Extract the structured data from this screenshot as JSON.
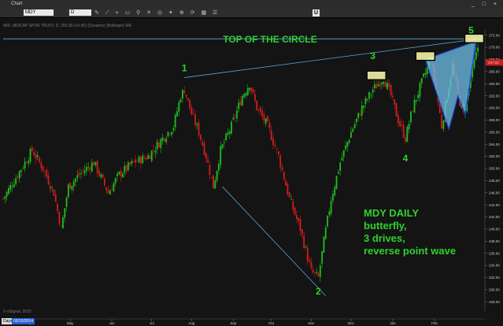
{
  "window": {
    "title": "Chart",
    "symbol_value": "MDY",
    "period_value": "D",
    "u_button": "U",
    "controls": "_ □ ×"
  },
  "chart_header": "MID, MIDCAP SPDR TRUST, D, 265.00 (+0.00) (Dynamic) (Bollinger) MA",
  "watermark_footer": "© eSignal, 2015",
  "axis_controls": {
    "days_label": "Days",
    "date_value": "03/10/2014"
  },
  "annotations": {
    "title": "TOP OF THE CIRCLE",
    "wave_labels": [
      "1",
      "2",
      "3",
      "4",
      "5"
    ],
    "note_lines": [
      "MDY DAILY",
      "butterfly,",
      "3 drives,",
      "reverse point wave"
    ]
  },
  "colors": {
    "background": "#141414",
    "up_candle": "#1fbf1f",
    "down_candle": "#d11d1d",
    "annotation": "#2fd12f",
    "trendline": "#5aa6dc",
    "pattern_fill": "#6fbfe8",
    "pattern_stroke": "#1e4fd8",
    "box_fill": "#f3f1a6",
    "price_marker": "#d11d1d"
  },
  "chart_data": {
    "type": "candlestick",
    "x_tick_labels": [
      "Apr",
      "May",
      "Jun",
      "Jul",
      "Aug",
      "Sep",
      "Oct",
      "Nov",
      "Dec",
      "Jan",
      "Feb"
    ],
    "y_ticks": [
      228,
      230,
      232,
      234,
      236,
      238,
      240,
      242,
      244,
      246,
      248,
      250,
      252,
      254,
      256,
      258,
      260,
      262,
      264,
      266,
      268,
      270,
      272
    ],
    "ylim": [
      227,
      273
    ],
    "last_price_label": "267.50",
    "grid": false,
    "path_points": [
      {
        "x": 0,
        "y": 245
      },
      {
        "x": 8,
        "y": 249
      },
      {
        "x": 16,
        "y": 253
      },
      {
        "x": 22,
        "y": 250
      },
      {
        "x": 28,
        "y": 246
      },
      {
        "x": 32,
        "y": 240
      },
      {
        "x": 36,
        "y": 247
      },
      {
        "x": 42,
        "y": 249
      },
      {
        "x": 50,
        "y": 251
      },
      {
        "x": 58,
        "y": 246
      },
      {
        "x": 64,
        "y": 249
      },
      {
        "x": 72,
        "y": 251
      },
      {
        "x": 80,
        "y": 252
      },
      {
        "x": 88,
        "y": 255
      },
      {
        "x": 94,
        "y": 257
      },
      {
        "x": 98,
        "y": 262
      },
      {
        "x": 100,
        "y": 263
      },
      {
        "x": 104,
        "y": 259
      },
      {
        "x": 108,
        "y": 256
      },
      {
        "x": 112,
        "y": 252
      },
      {
        "x": 116,
        "y": 247
      },
      {
        "x": 120,
        "y": 253
      },
      {
        "x": 126,
        "y": 257
      },
      {
        "x": 132,
        "y": 262
      },
      {
        "x": 136,
        "y": 264
      },
      {
        "x": 140,
        "y": 260
      },
      {
        "x": 146,
        "y": 257
      },
      {
        "x": 152,
        "y": 252
      },
      {
        "x": 158,
        "y": 245
      },
      {
        "x": 164,
        "y": 240
      },
      {
        "x": 170,
        "y": 233
      },
      {
        "x": 174,
        "y": 232
      },
      {
        "x": 177,
        "y": 238
      },
      {
        "x": 181,
        "y": 245
      },
      {
        "x": 186,
        "y": 251
      },
      {
        "x": 192,
        "y": 256
      },
      {
        "x": 198,
        "y": 260
      },
      {
        "x": 204,
        "y": 263
      },
      {
        "x": 210,
        "y": 265
      },
      {
        "x": 214,
        "y": 262
      },
      {
        "x": 218,
        "y": 258
      },
      {
        "x": 222,
        "y": 255
      },
      {
        "x": 226,
        "y": 260
      },
      {
        "x": 232,
        "y": 265
      },
      {
        "x": 236,
        "y": 268
      },
      {
        "x": 239,
        "y": 263
      },
      {
        "x": 242,
        "y": 257
      },
      {
        "x": 245,
        "y": 262
      },
      {
        "x": 248,
        "y": 267
      },
      {
        "x": 251,
        "y": 262
      },
      {
        "x": 254,
        "y": 259
      },
      {
        "x": 258,
        "y": 265
      },
      {
        "x": 262,
        "y": 270
      }
    ],
    "x_domain": [
      0,
      265
    ],
    "x_tick_positions": [
      15,
      37,
      60,
      82,
      104,
      127,
      148,
      170,
      192,
      215,
      238
    ],
    "wave_points": [
      {
        "label": "1",
        "x": 100,
        "y": 264
      },
      {
        "label": "2",
        "x": 174,
        "y": 231
      },
      {
        "label": "3",
        "x": 204,
        "y": 266
      },
      {
        "label": "4",
        "x": 222,
        "y": 253
      },
      {
        "label": "5",
        "x": 260,
        "y": 271
      }
    ],
    "trendlines": [
      {
        "from": {
          "x": 100,
          "y": 265
        },
        "to": {
          "x": 265,
          "y": 271.5
        }
      },
      {
        "from": {
          "x": 0,
          "y": 271.4
        },
        "to": {
          "x": 265,
          "y": 271.4
        }
      },
      {
        "from": {
          "x": 121,
          "y": 247
        },
        "to": {
          "x": 178,
          "y": 229
        }
      }
    ],
    "boxes": [
      {
        "x": 206,
        "y": 265.3
      },
      {
        "x": 233,
        "y": 268.5
      },
      {
        "x": 260,
        "y": 271.4
      }
    ],
    "pattern_polygon": [
      {
        "x": 233,
        "y": 268
      },
      {
        "x": 246,
        "y": 256.5
      },
      {
        "x": 251,
        "y": 262
      },
      {
        "x": 255,
        "y": 259
      },
      {
        "x": 261,
        "y": 271
      },
      {
        "x": 233,
        "y": 268
      }
    ]
  }
}
